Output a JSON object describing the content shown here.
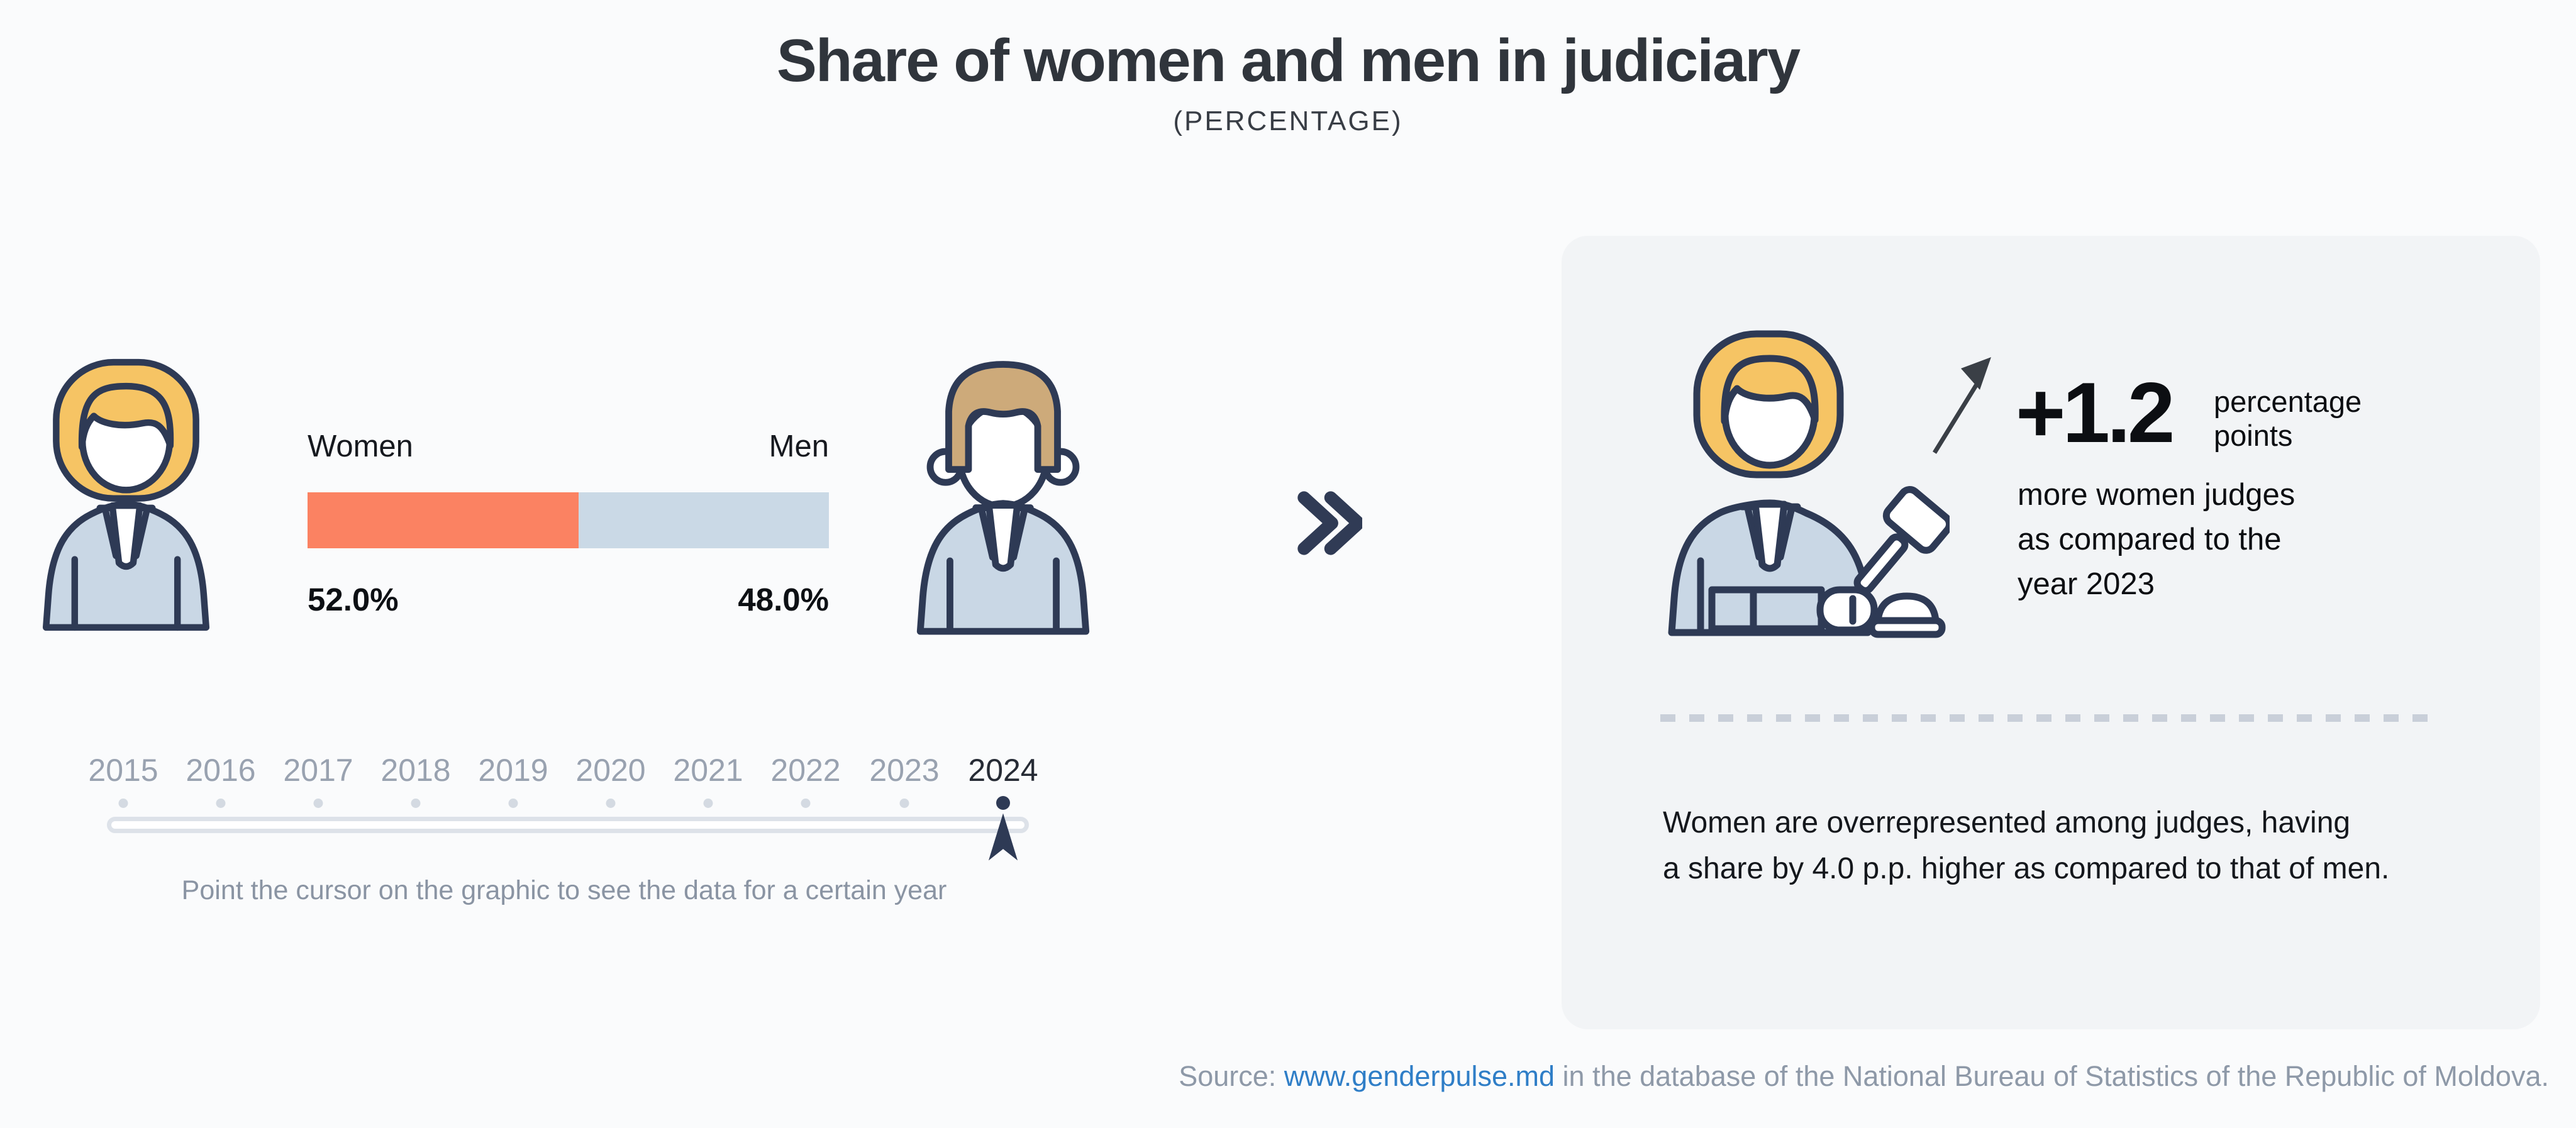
{
  "header": {
    "title": "Share of women and men in judiciary",
    "subtitle": "(PERCENTAGE)"
  },
  "chart_data": {
    "type": "bar",
    "orientation": "horizontal-stacked",
    "title": "Share of women and men in judiciary",
    "subtitle": "(PERCENTAGE)",
    "unit": "percent",
    "categories": [
      "Women",
      "Men"
    ],
    "values": [
      52.0,
      48.0
    ],
    "value_labels": [
      "52.0%",
      "48.0%"
    ],
    "series_colors": [
      "#FB8262",
      "#CAD9E6"
    ],
    "years": [
      "2015",
      "2016",
      "2017",
      "2018",
      "2019",
      "2020",
      "2021",
      "2022",
      "2023",
      "2024"
    ],
    "selected_year": "2024",
    "change_vs_2023_pp": 1.2,
    "women_minus_men_pp": 4.0
  },
  "timeline": {
    "years": [
      "2015",
      "2016",
      "2017",
      "2018",
      "2019",
      "2020",
      "2021",
      "2022",
      "2023",
      "2024"
    ],
    "selected_year": "2024",
    "hint": "Point the cursor on the graphic to see the data for a certain year"
  },
  "panel": {
    "delta_value": "+1.2",
    "delta_unit_lines": [
      "percentage",
      "points"
    ],
    "delta_lines": [
      "more women judges",
      "as compared to the",
      "year 2023"
    ],
    "note_lines": [
      "Women are overrepresented among judges, having",
      "a share by 4.0 p.p. higher as compared to that of men."
    ]
  },
  "source": {
    "prefix": "Source: ",
    "link_text": "www.genderpulse.md",
    "suffix": " in the database of the National Bureau of Statistics of the Republic of Moldova."
  },
  "icons": {
    "left": "woman-judge-icon",
    "right": "man-judge-icon",
    "panel": "woman-judge-gavel-icon",
    "between": "double-chevron-right-icon",
    "trend": "trend-up-arrow-icon",
    "cursor": "timeline-cursor-icon"
  },
  "colors": {
    "page_background": "#FAFBFC",
    "panel_background": "#F2F4F6",
    "women_accent": "#FB8262",
    "men_fill": "#CAD9E6",
    "outline_navy": "#2E3A55",
    "hair_woman": "#F6C464",
    "hair_man": "#CDAA7A",
    "robe_blue": "#C9D7E5",
    "muted_text": "#8E99A8",
    "year_gray": "#99A2B0",
    "link_blue": "#2F7EC7"
  }
}
